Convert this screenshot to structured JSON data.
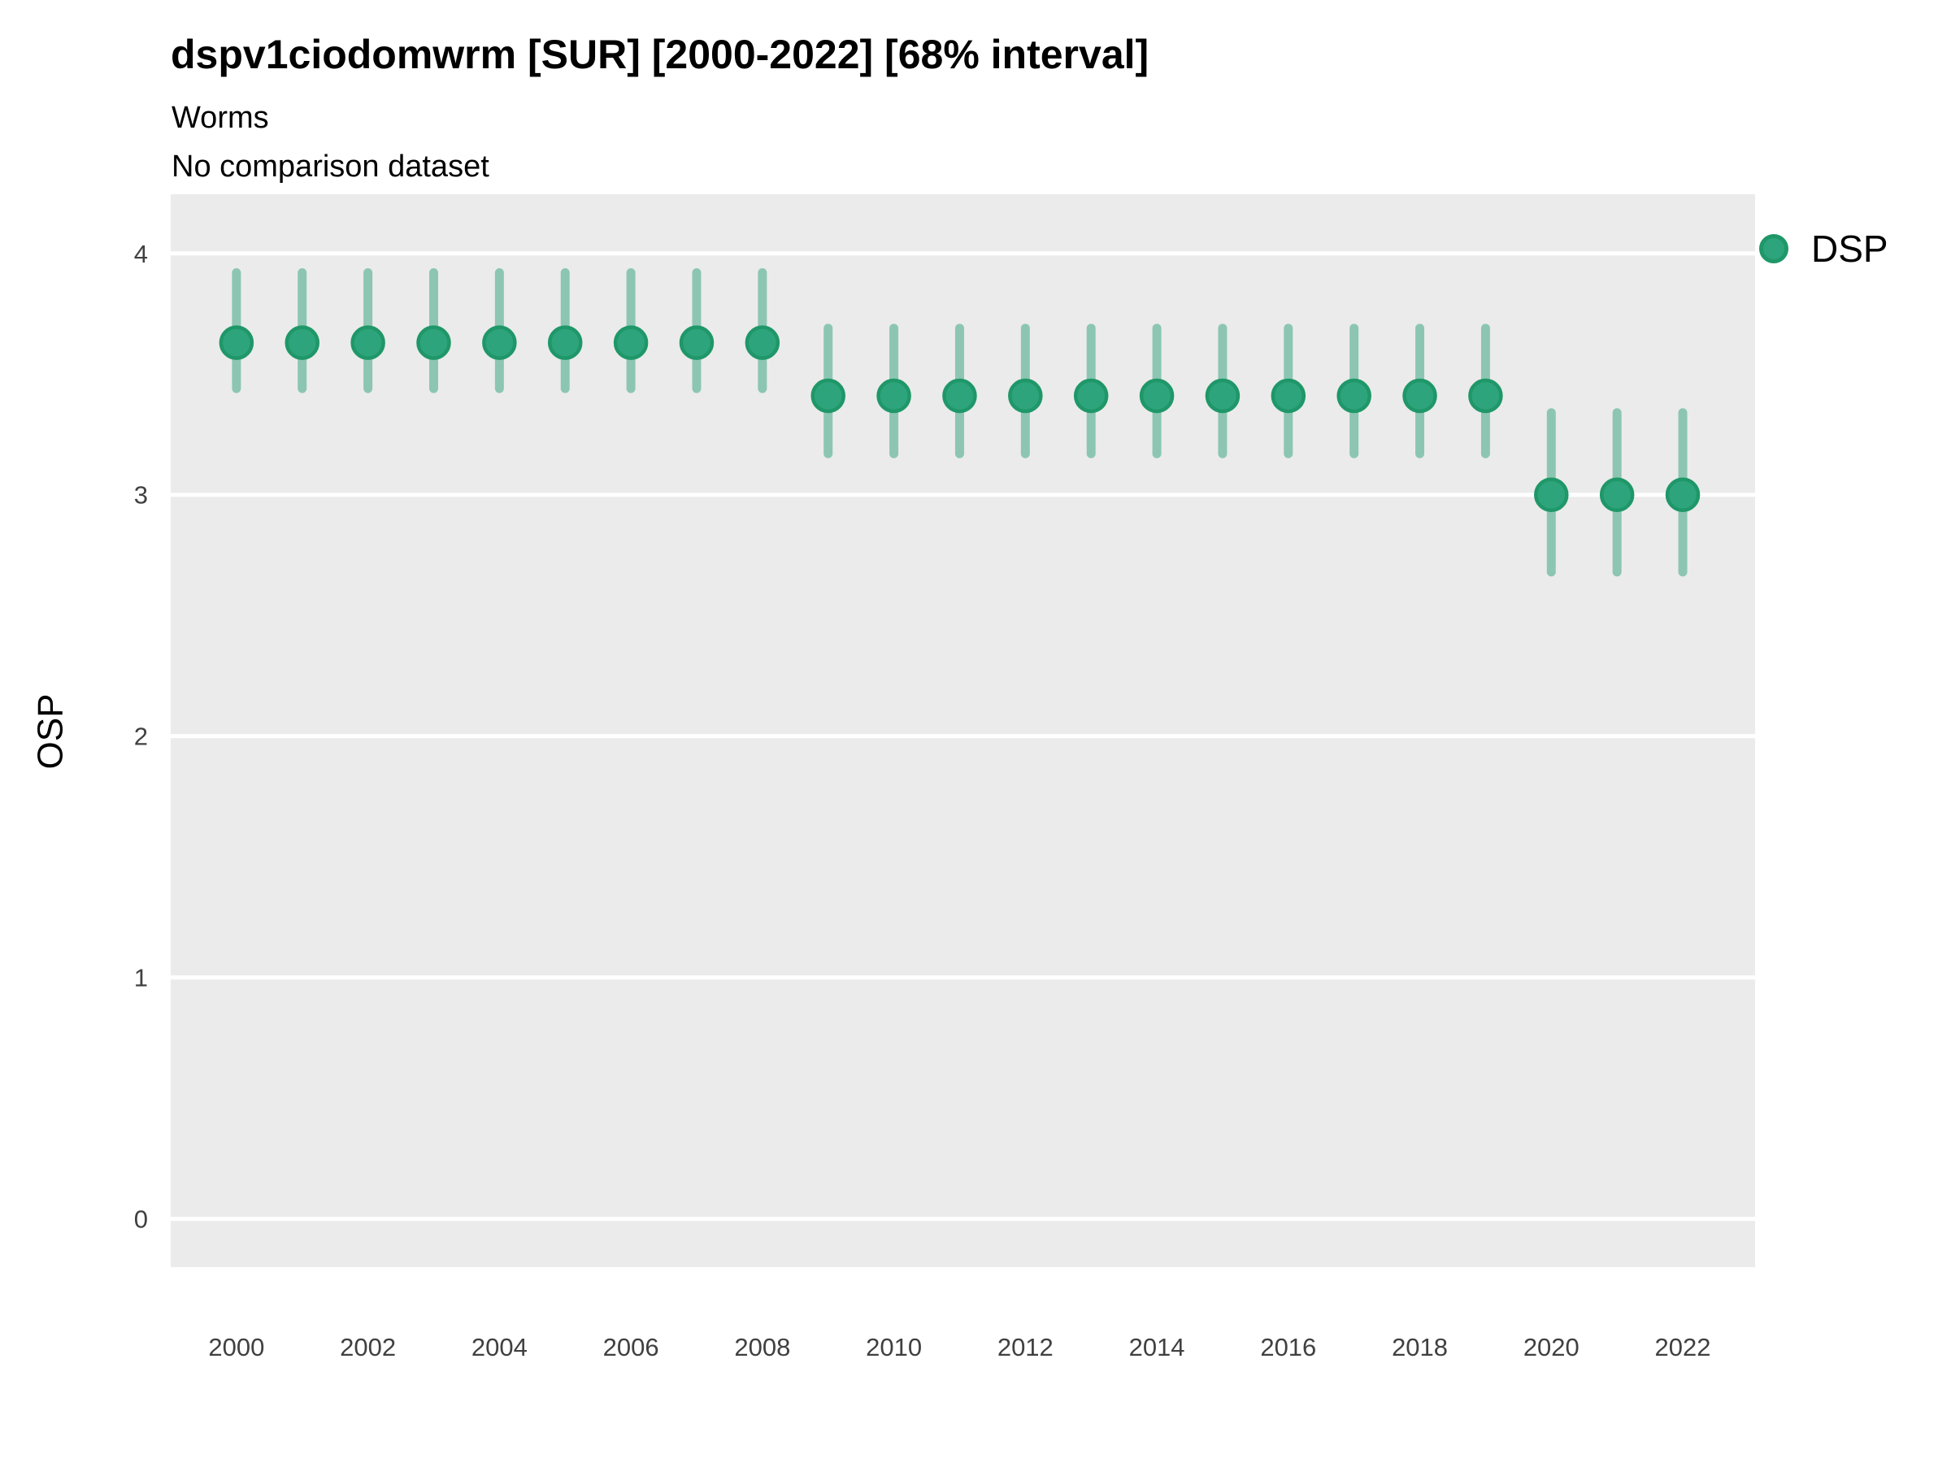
{
  "header": {
    "title": "dspv1ciodomwrm [SUR] [2000-2022] [68% interval]",
    "subtitle": "Worms",
    "note": "No comparison dataset"
  },
  "legend": {
    "items": [
      {
        "label": "DSP",
        "dot_fill": "#2EA47D",
        "dot_ring": "#1F9769"
      }
    ],
    "position": "right"
  },
  "chart_data": {
    "type": "scatter",
    "title": "dspv1ciodomwrm [SUR] [2000-2022] [68% interval]",
    "subtitle": "Worms",
    "note": "No comparison dataset",
    "xlabel": "",
    "ylabel": "OSP",
    "interval_label": "68% interval",
    "legend_position": "right",
    "grid": "horizontal-major-only",
    "x": [
      2000,
      2001,
      2002,
      2003,
      2004,
      2005,
      2006,
      2007,
      2008,
      2009,
      2010,
      2011,
      2012,
      2013,
      2014,
      2015,
      2016,
      2017,
      2018,
      2019,
      2020,
      2021,
      2022
    ],
    "series": [
      {
        "name": "DSP",
        "mid": [
          3.63,
          3.63,
          3.63,
          3.63,
          3.63,
          3.63,
          3.63,
          3.63,
          3.63,
          3.41,
          3.41,
          3.41,
          3.41,
          3.41,
          3.41,
          3.41,
          3.41,
          3.41,
          3.41,
          3.41,
          3.0,
          3.0,
          3.0
        ],
        "lo": [
          3.44,
          3.44,
          3.44,
          3.44,
          3.44,
          3.44,
          3.44,
          3.44,
          3.44,
          3.17,
          3.17,
          3.17,
          3.17,
          3.17,
          3.17,
          3.17,
          3.17,
          3.17,
          3.17,
          3.17,
          2.68,
          2.68,
          2.68
        ],
        "hi": [
          3.92,
          3.92,
          3.92,
          3.92,
          3.92,
          3.92,
          3.92,
          3.92,
          3.92,
          3.69,
          3.69,
          3.69,
          3.69,
          3.69,
          3.69,
          3.69,
          3.69,
          3.69,
          3.69,
          3.69,
          3.34,
          3.34,
          3.34
        ]
      }
    ],
    "x_ticks": [
      2000,
      2002,
      2004,
      2006,
      2008,
      2010,
      2012,
      2014,
      2016,
      2018,
      2020,
      2022
    ],
    "y_ticks": [
      0,
      1,
      2,
      3,
      4
    ],
    "xlim": [
      1999.0,
      2023.1
    ],
    "ylim": [
      -0.2,
      4.245
    ]
  },
  "style": {
    "panel_bg": "#EBEBEB",
    "gridline": "#FFFFFF",
    "bar_color": "rgba(45,162,124,0.5)",
    "point_fill": "#2EA47D",
    "point_ring": "#1F9769",
    "tick_text": "#404040"
  }
}
